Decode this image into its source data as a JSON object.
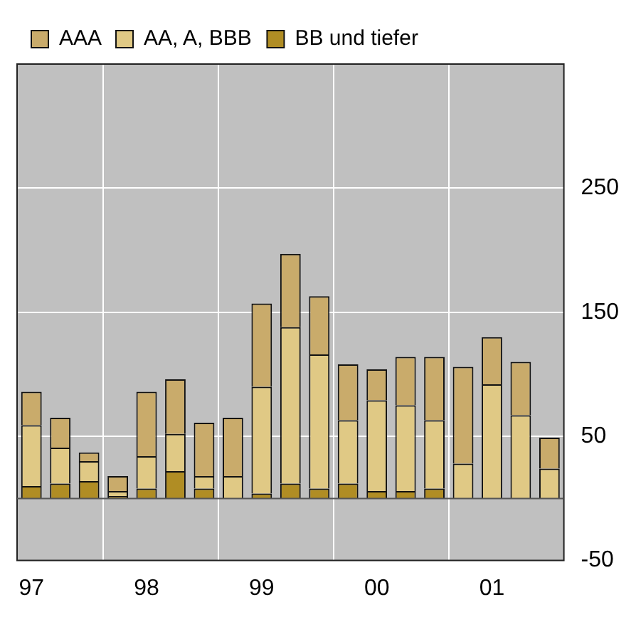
{
  "chart_data": {
    "type": "bar",
    "stacked": true,
    "categories": [
      "97",
      null,
      null,
      null,
      "98",
      null,
      null,
      null,
      "99",
      null,
      null,
      null,
      "00",
      null,
      null,
      null,
      "01",
      null,
      null
    ],
    "series": [
      {
        "name": "BB und tiefer",
        "color": "#b08d24",
        "values": [
          10,
          12,
          14,
          2,
          8,
          22,
          8,
          0,
          4,
          12,
          8,
          12,
          6,
          6,
          8,
          0,
          0,
          0,
          0
        ]
      },
      {
        "name": "AA, A, BBB",
        "color": "#e0c985",
        "values": [
          49,
          29,
          16,
          4,
          26,
          30,
          10,
          18,
          86,
          126,
          108,
          51,
          73,
          69,
          55,
          28,
          92,
          67,
          24
        ]
      },
      {
        "name": "AAA",
        "color": "#c9ab6b",
        "values": [
          27,
          24,
          7,
          12,
          52,
          44,
          43,
          47,
          67,
          59,
          47,
          45,
          25,
          39,
          51,
          78,
          38,
          43,
          25
        ]
      }
    ],
    "ylim": [
      -50,
      350
    ],
    "yticks": [
      -50,
      50,
      150,
      250
    ],
    "grid": true,
    "legend": "top left"
  }
}
